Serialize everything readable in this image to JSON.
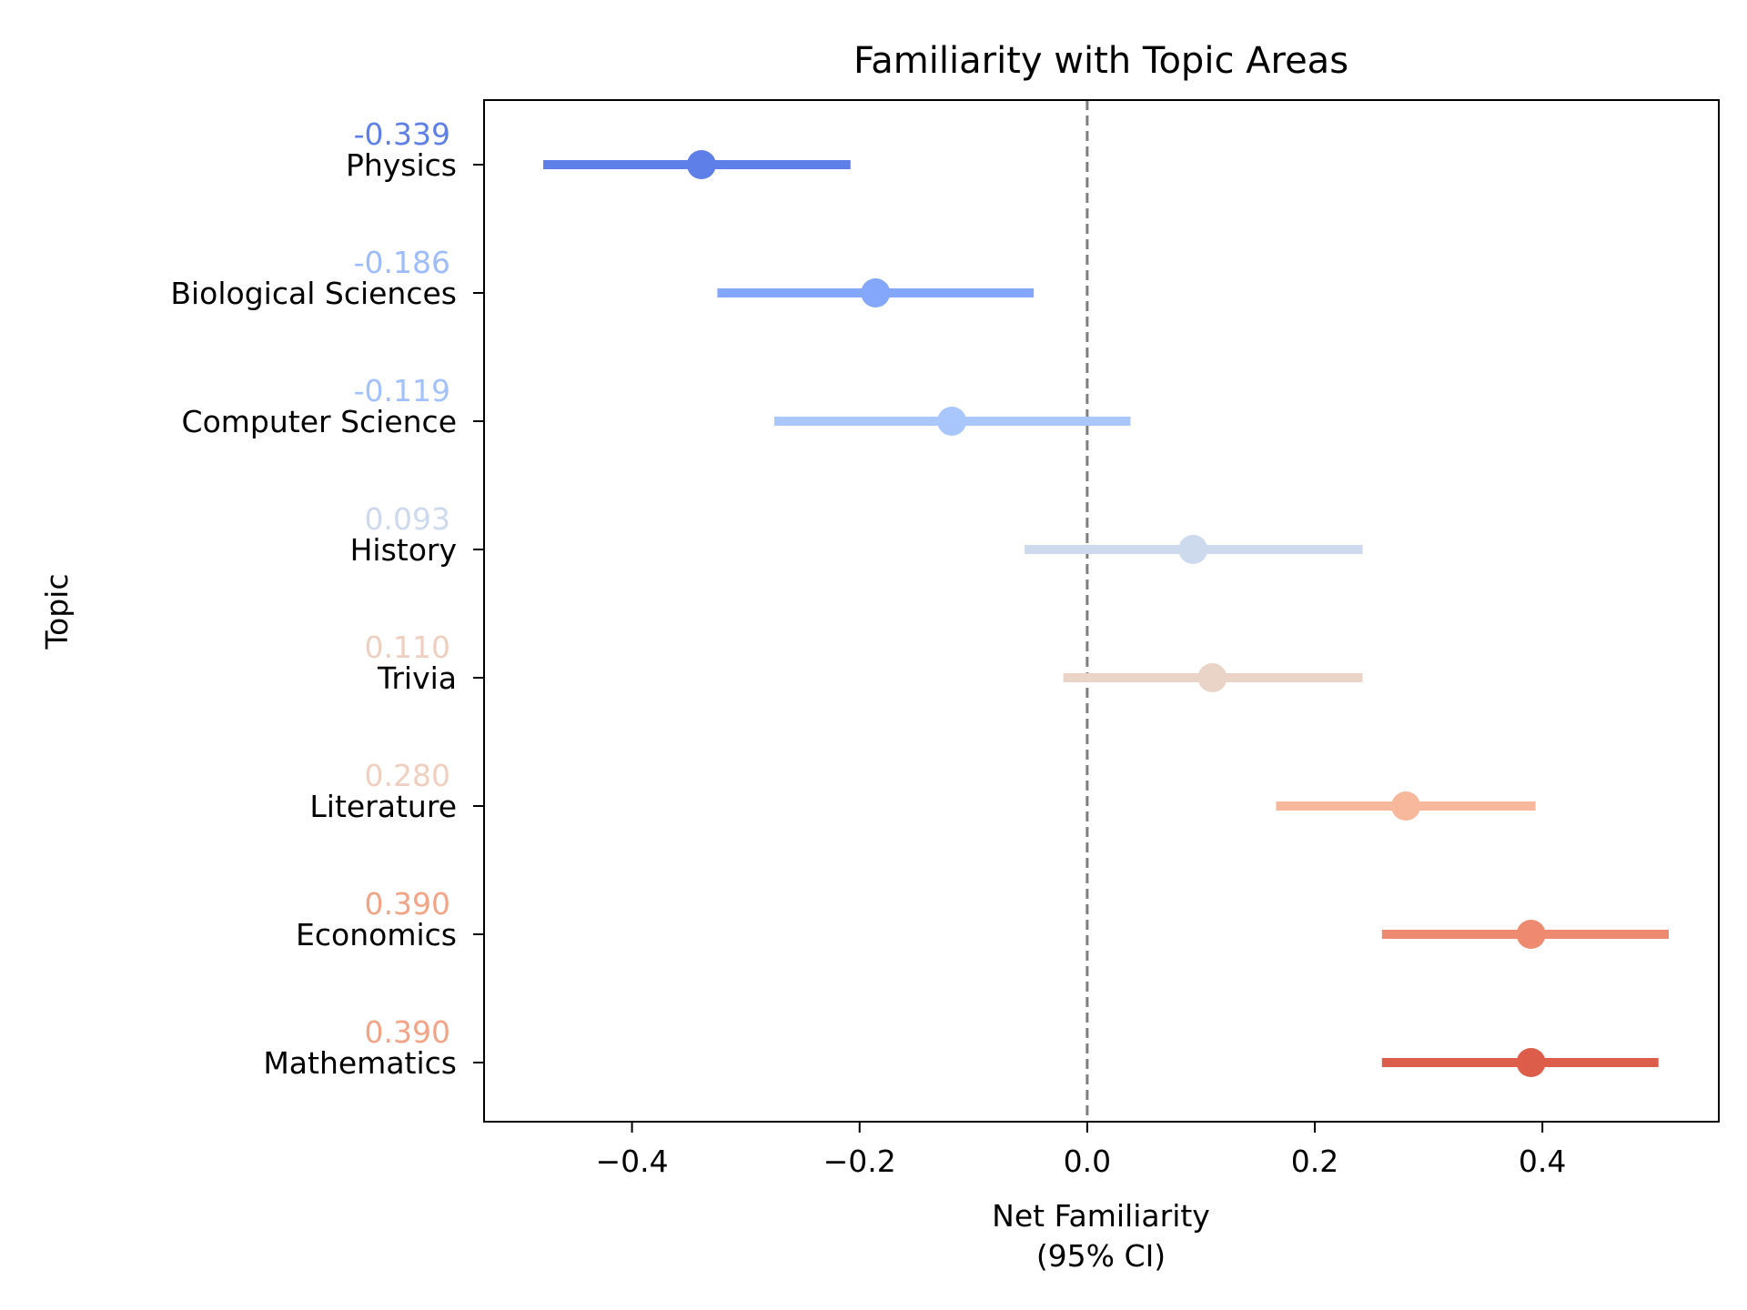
{
  "chart_data": {
    "type": "errorbar",
    "title": "Familiarity with Topic Areas",
    "xlabel_line1": "Net Familiarity",
    "xlabel_line2": "(95% CI)",
    "ylabel": "Topic",
    "xlim": [
      -0.53,
      0.555
    ],
    "xticks": [
      -0.4,
      -0.2,
      0.0,
      0.2,
      0.4
    ],
    "xtick_labels": [
      "−0.4",
      "−0.2",
      "0.0",
      "0.2",
      "0.4"
    ],
    "reference_line_x": 0.0,
    "grid": false,
    "points": [
      {
        "topic": "Physics",
        "value": -0.339,
        "label": "-0.339",
        "ci_low": -0.478,
        "ci_high": -0.208,
        "color": "#5f7fe8",
        "label_color": "#5f7fe8"
      },
      {
        "topic": "Biological Sciences",
        "value": -0.186,
        "label": "-0.186",
        "ci_low": -0.325,
        "ci_high": -0.047,
        "color": "#84a7fc",
        "label_color": "#9ebcfb"
      },
      {
        "topic": "Computer Science",
        "value": -0.119,
        "label": "-0.119",
        "ci_low": -0.275,
        "ci_high": 0.038,
        "color": "#a9c6fd",
        "label_color": "#a3c1fd"
      },
      {
        "topic": "History",
        "value": 0.093,
        "label": "0.093",
        "ci_low": -0.055,
        "ci_high": 0.242,
        "color": "#cdd9ec",
        "label_color": "#cdd9ec"
      },
      {
        "topic": "Trivia",
        "value": 0.11,
        "label": "0.110",
        "ci_low": -0.021,
        "ci_high": 0.242,
        "color": "#ead4c8",
        "label_color": "#efcfbf"
      },
      {
        "topic": "Literature",
        "value": 0.28,
        "label": "0.280",
        "ci_low": 0.166,
        "ci_high": 0.394,
        "color": "#f7b89c",
        "label_color": "#efcfbf"
      },
      {
        "topic": "Economics",
        "value": 0.39,
        "label": "0.390",
        "ci_low": 0.259,
        "ci_high": 0.511,
        "color": "#ee8a6f",
        "label_color": "#f3a486"
      },
      {
        "topic": "Mathematics",
        "value": 0.39,
        "label": "0.390",
        "ci_low": 0.259,
        "ci_high": 0.502,
        "color": "#dc5d4a",
        "label_color": "#f3a486"
      }
    ]
  }
}
